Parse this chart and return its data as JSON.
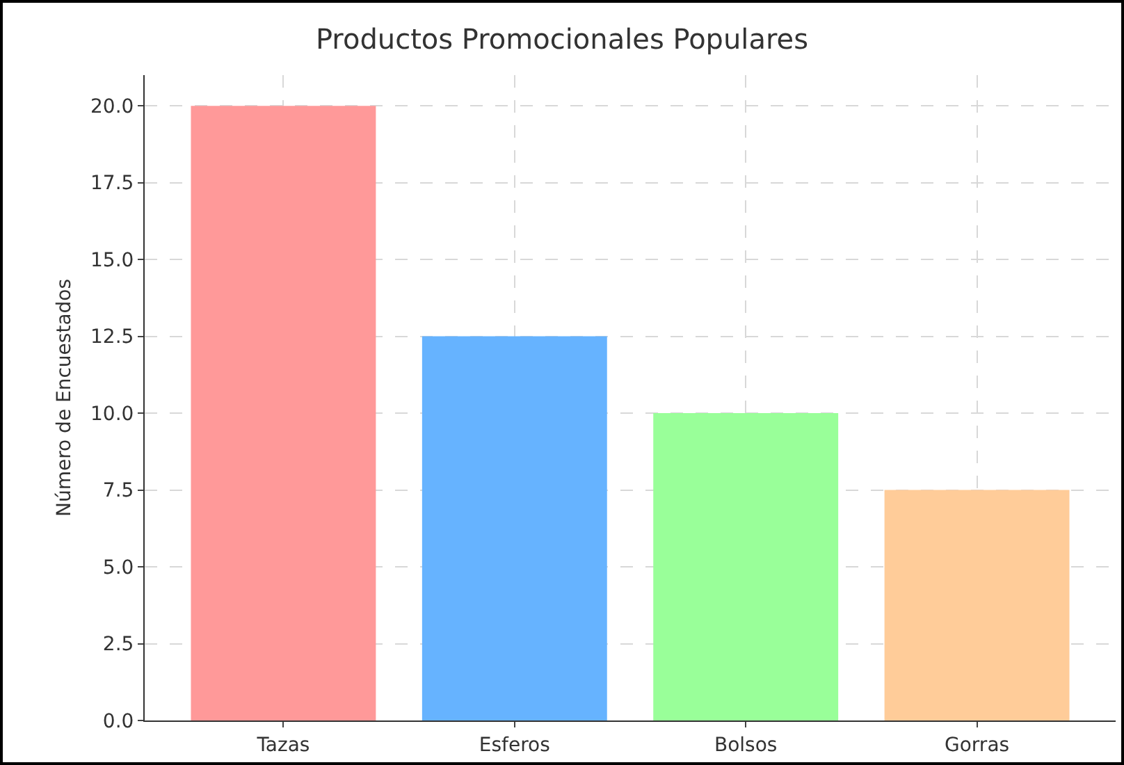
{
  "chart_data": {
    "type": "bar",
    "title": "Productos Promocionales Populares",
    "ylabel": "Número de Encuestados",
    "categories": [
      "Tazas",
      "Esferos",
      "Bolsos",
      "Gorras"
    ],
    "values": [
      20,
      12.5,
      10,
      7.5
    ],
    "colors": [
      "#ff9999",
      "#66b3ff",
      "#99ff99",
      "#ffcc99"
    ],
    "ylim": [
      0,
      21
    ],
    "yticks": [
      {
        "value": 0,
        "label": "0.0"
      },
      {
        "value": 2.5,
        "label": "2.5"
      },
      {
        "value": 5,
        "label": "5.0"
      },
      {
        "value": 7.5,
        "label": "7.5"
      },
      {
        "value": 10,
        "label": "10.0"
      },
      {
        "value": 12.5,
        "label": "12.5"
      },
      {
        "value": 15,
        "label": "15.0"
      },
      {
        "value": 17.5,
        "label": "17.5"
      },
      {
        "value": 20,
        "label": "20.0"
      }
    ],
    "grid": true
  }
}
